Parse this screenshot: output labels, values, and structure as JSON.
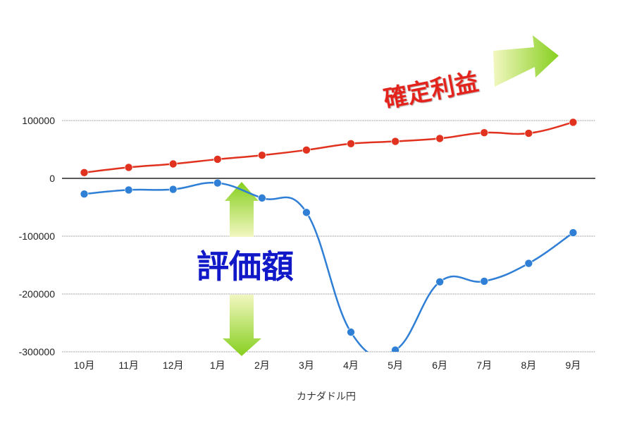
{
  "chart_data": {
    "type": "line",
    "categories": [
      "10月",
      "11月",
      "12月",
      "1月",
      "2月",
      "3月",
      "4月",
      "5月",
      "6月",
      "7月",
      "8月",
      "9月"
    ],
    "series": [
      {
        "values": [
          10000,
          19000,
          25000,
          33000,
          40000,
          49000,
          60000,
          64000,
          69000,
          79000,
          78000,
          97000
        ]
      },
      {
        "values": [
          -27000,
          -20000,
          -19000,
          -8000,
          -34000,
          -59000,
          -266000,
          -297000,
          -179000,
          -178000,
          -147000,
          -94000
        ]
      }
    ],
    "xlabel": "カナダドル円",
    "ylabel": "",
    "ylim": [
      -300000,
      100000
    ],
    "yticks": [
      100000,
      0,
      -100000,
      -200000,
      -300000
    ],
    "ytick_labels": [
      "100000",
      "0",
      "-100000",
      "-200000",
      "-300000"
    ],
    "grid": true,
    "annotations": {
      "valuation": "評価額",
      "realized_profit": "確定利益"
    },
    "colors": {
      "realized": "#e0321f",
      "valuation": "#2f7fd6",
      "zero_line": "#222222",
      "grid": "#999999",
      "arrow_light": "#f2f7c0",
      "arrow_dark": "#86cf1e",
      "annotation_blue": "#1018c8",
      "annotation_red": "#e3241b"
    }
  }
}
